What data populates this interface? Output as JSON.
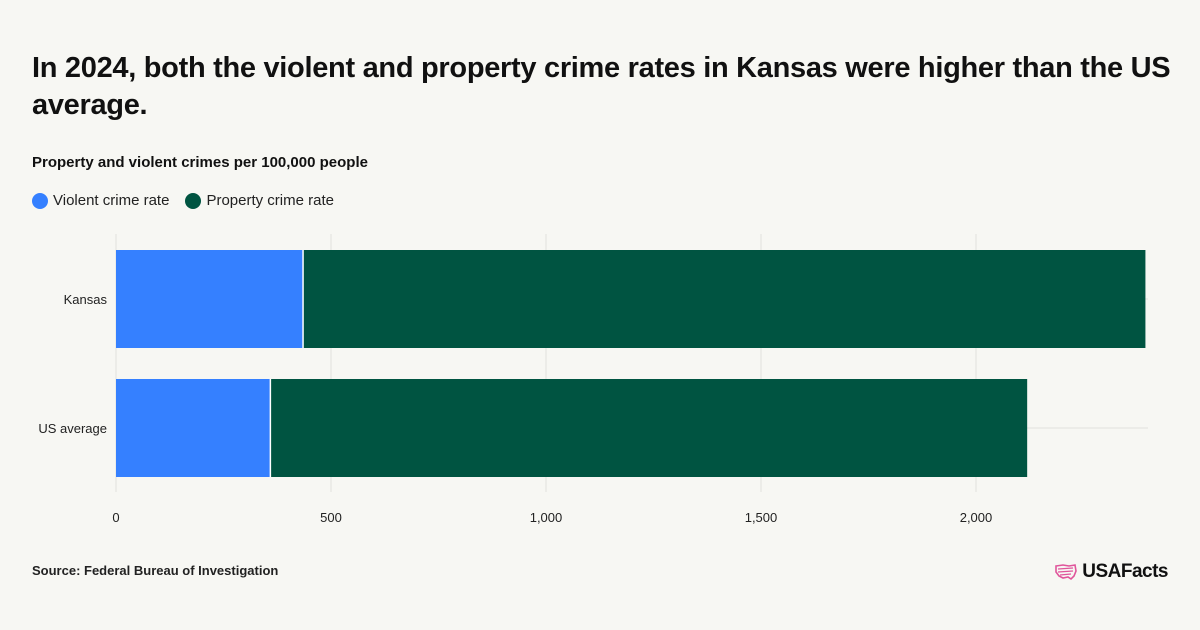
{
  "title": "In 2024, both the violent and property crime rates in Kansas were higher than the US average.",
  "source": "Source: Federal Bureau of Investigation",
  "logo_text": "USAFacts",
  "logo_icon": "us-map-flag-icon",
  "colors": {
    "violent": "#3580ff",
    "property": "#005441",
    "logo_accent": "#e0559b"
  },
  "chart_data": {
    "type": "bar",
    "orientation": "horizontal",
    "stacked": true,
    "subtitle": "Property and violent crimes per 100,000 people",
    "categories": [
      "Kansas",
      "US average"
    ],
    "series": [
      {
        "name": "Violent crime rate",
        "color": "#3580ff",
        "values": [
          435,
          359
        ]
      },
      {
        "name": "Property crime rate",
        "color": "#005441",
        "values": [
          1959,
          1760
        ]
      }
    ],
    "xlim": [
      0,
      2400
    ],
    "xticks": [
      0,
      500,
      1000,
      1500,
      2000
    ],
    "xtick_labels": [
      "0",
      "500",
      "1,000",
      "1,500",
      "2,000"
    ],
    "grid": true,
    "legend_position": "top-left"
  }
}
